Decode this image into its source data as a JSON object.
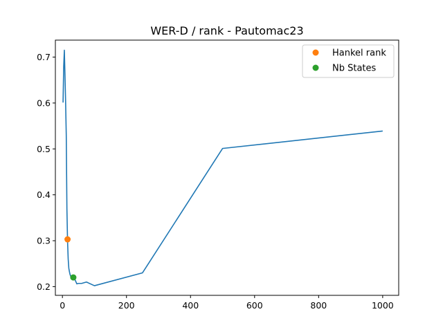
{
  "chart_data": {
    "type": "line",
    "title": "WER-D / rank - Pautomac23",
    "xlabel": "",
    "ylabel": "",
    "xlim": [
      -22,
      1050
    ],
    "ylim": [
      0.181,
      0.737
    ],
    "xticks": [
      0,
      200,
      400,
      600,
      800,
      1000
    ],
    "yticks": [
      0.2,
      0.3,
      0.4,
      0.5,
      0.6,
      0.7
    ],
    "grid": false,
    "legend_position": "top-right",
    "series": [
      {
        "type": "line",
        "color": "#1f77b4",
        "x": [
          2,
          4,
          6,
          8,
          10,
          12,
          14,
          16,
          18,
          20,
          22,
          24,
          26,
          28,
          30,
          32,
          35,
          40,
          45,
          50,
          60,
          75,
          100,
          250,
          500,
          1000
        ],
        "y": [
          0.601,
          0.68,
          0.715,
          0.66,
          0.6,
          0.53,
          0.37,
          0.3,
          0.26,
          0.24,
          0.232,
          0.226,
          0.222,
          0.219,
          0.217,
          0.216,
          0.218,
          0.214,
          0.206,
          0.207,
          0.207,
          0.21,
          0.202,
          0.23,
          0.501,
          0.539
        ]
      },
      {
        "name": "Hankel rank",
        "type": "point",
        "color": "#ff7f0e",
        "x": [
          16
        ],
        "y": [
          0.303
        ]
      },
      {
        "name": "Nb States",
        "type": "point",
        "color": "#2ca02c",
        "x": [
          34
        ],
        "y": [
          0.22
        ]
      }
    ]
  }
}
